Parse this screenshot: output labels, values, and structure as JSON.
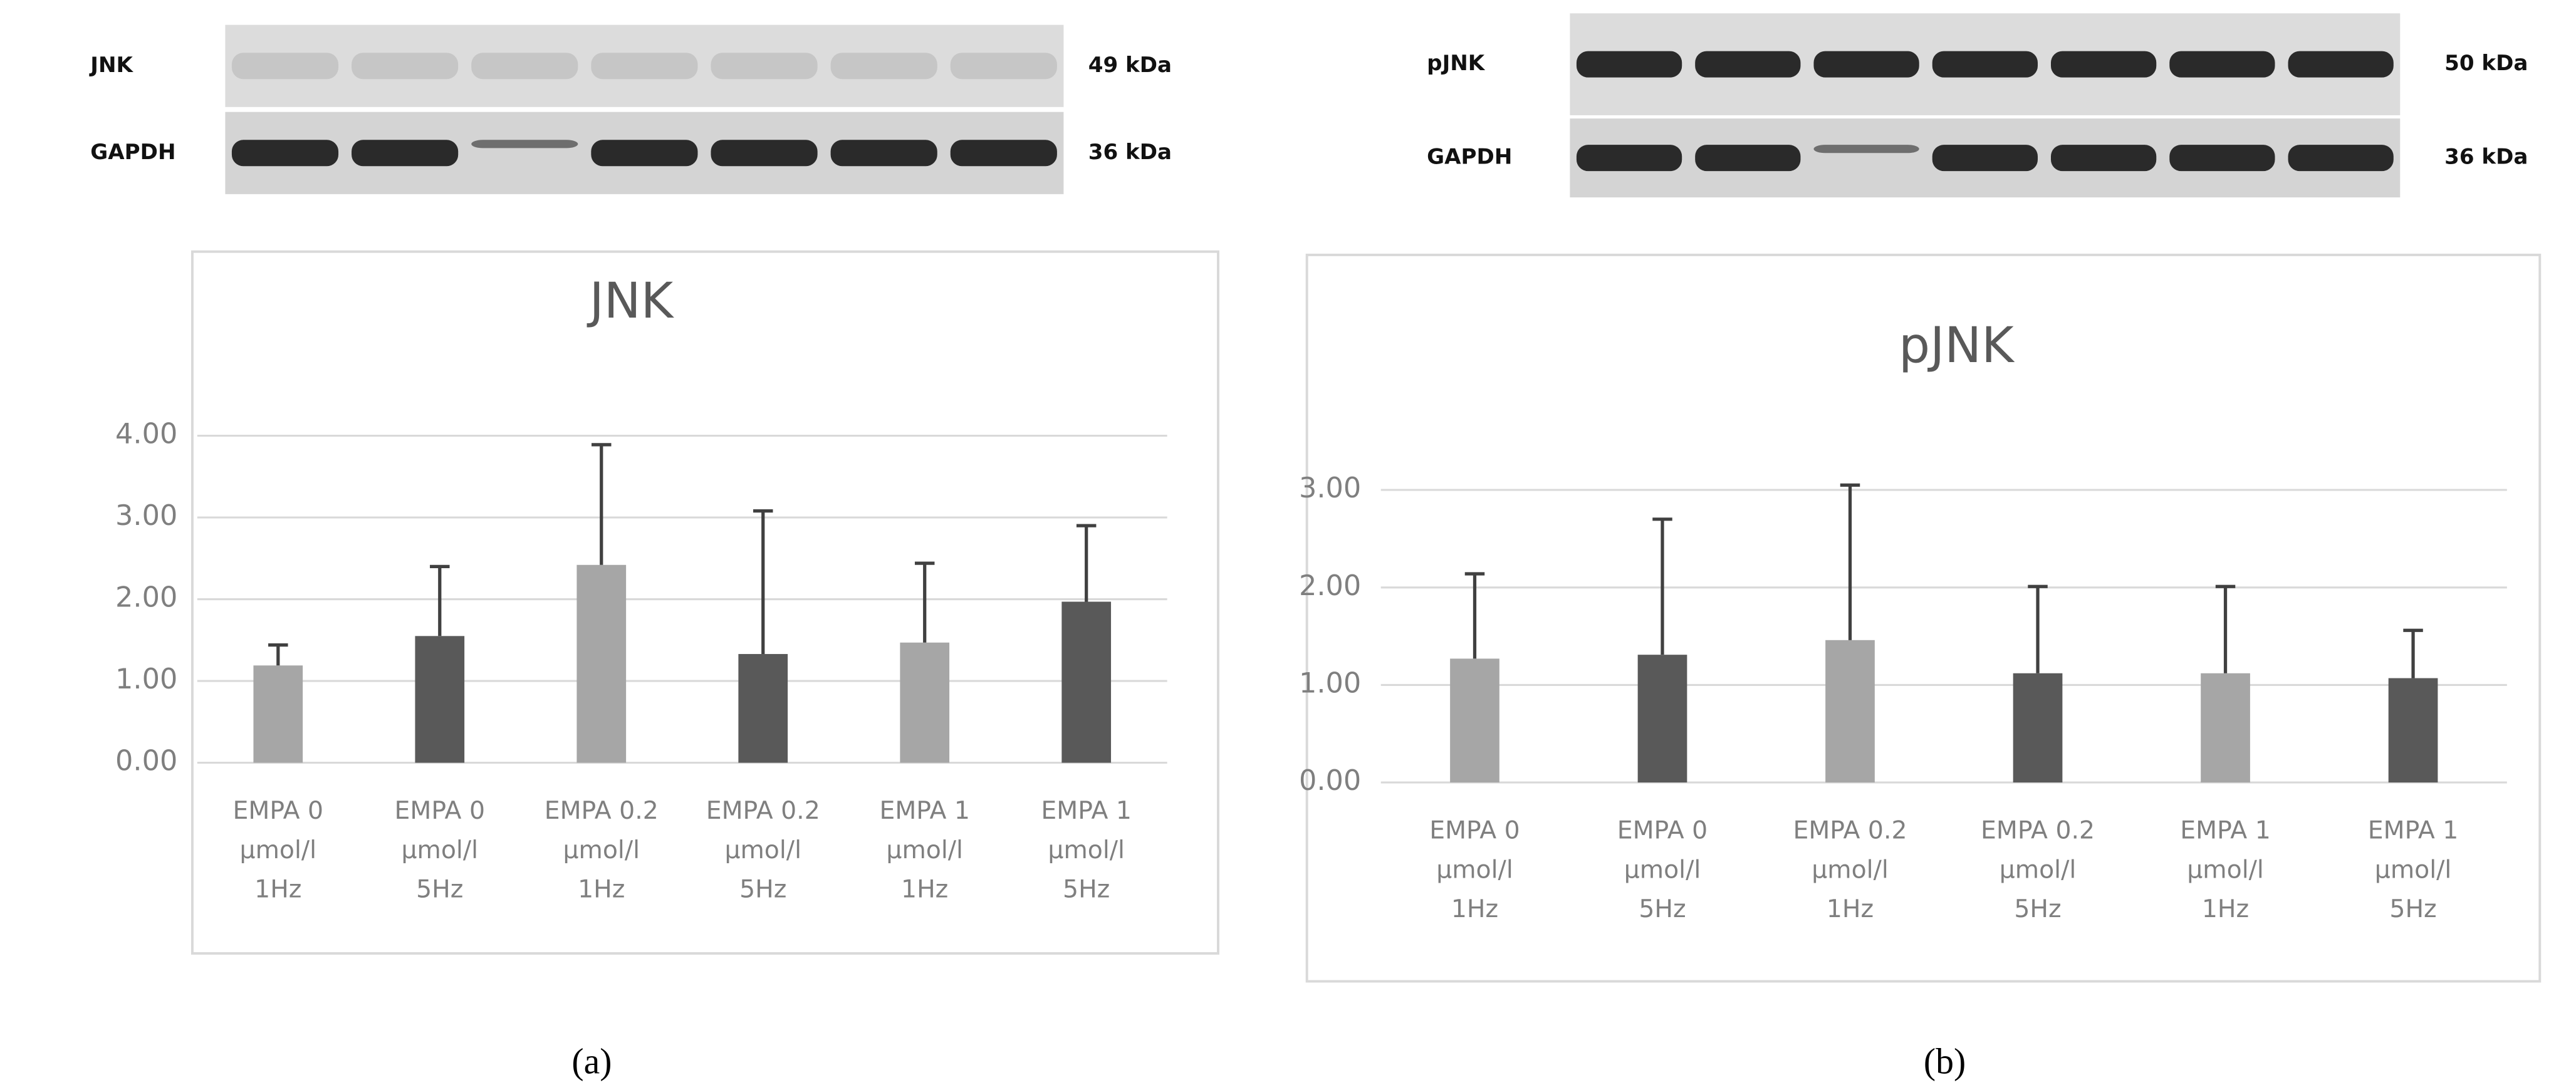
{
  "chart_data": [
    {
      "type": "bar",
      "title": "JNK",
      "blot": {
        "rows": [
          {
            "label": "JNK",
            "size": "49 kDa"
          },
          {
            "label": "GAPDH",
            "size": "36 kDa"
          }
        ]
      },
      "categories": [
        [
          "EMPA 0",
          "µmol/l",
          "1Hz"
        ],
        [
          "EMPA 0",
          "µmol/l",
          "5Hz"
        ],
        [
          "EMPA 0.2",
          "µmol/l",
          "1Hz"
        ],
        [
          "EMPA 0.2",
          "µmol/l",
          "5Hz"
        ],
        [
          "EMPA 1",
          "µmol/l",
          "1Hz"
        ],
        [
          "EMPA 1",
          "µmol/l",
          "5Hz"
        ]
      ],
      "values": [
        1.19,
        1.55,
        2.42,
        1.33,
        1.47,
        1.97
      ],
      "errors": [
        0.25,
        0.85,
        1.47,
        1.75,
        0.97,
        0.93
      ],
      "colors": [
        "#a6a6a6",
        "#595959",
        "#a6a6a6",
        "#595959",
        "#a6a6a6",
        "#595959"
      ],
      "ylim": [
        0,
        4
      ],
      "yticks": [
        {
          "value": 0,
          "label": "0.00"
        },
        {
          "value": 1,
          "label": "1.00"
        },
        {
          "value": 2,
          "label": "2.00"
        },
        {
          "value": 3,
          "label": "3.00"
        },
        {
          "value": 4,
          "label": "4.00"
        }
      ],
      "grid": true,
      "panel_label": "(a)"
    },
    {
      "type": "bar",
      "title": "pJNK",
      "blot": {
        "rows": [
          {
            "label": "pJNK",
            "size": "50 kDa"
          },
          {
            "label": "GAPDH",
            "size": "36 kDa"
          }
        ]
      },
      "categories": [
        [
          "EMPA 0",
          "µmol/l",
          "1Hz"
        ],
        [
          "EMPA 0",
          "µmol/l",
          "5Hz"
        ],
        [
          "EMPA 0.2",
          "µmol/l",
          "1Hz"
        ],
        [
          "EMPA 0.2",
          "µmol/l",
          "5Hz"
        ],
        [
          "EMPA 1",
          "µmol/l",
          "1Hz"
        ],
        [
          "EMPA 1",
          "µmol/l",
          "5Hz"
        ]
      ],
      "values": [
        1.27,
        1.31,
        1.46,
        1.12,
        1.12,
        1.07
      ],
      "errors": [
        0.87,
        1.39,
        1.59,
        0.89,
        0.89,
        0.49
      ],
      "colors": [
        "#a6a6a6",
        "#595959",
        "#a6a6a6",
        "#595959",
        "#a6a6a6",
        "#595959"
      ],
      "ylim": [
        0,
        3
      ],
      "yticks": [
        {
          "value": 0,
          "label": "0.00"
        },
        {
          "value": 1,
          "label": "1.00"
        },
        {
          "value": 2,
          "label": "2.00"
        },
        {
          "value": 3,
          "label": "3.00"
        }
      ],
      "grid": true,
      "panel_label": "(b)"
    }
  ]
}
